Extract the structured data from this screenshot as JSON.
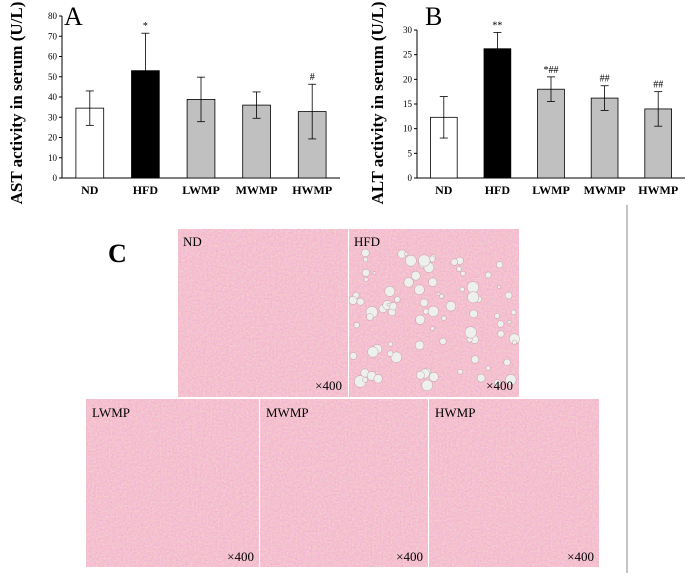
{
  "chart_data": [
    {
      "type": "bar",
      "panel_label": "A",
      "ylabel": "AST activity in serum (U/L)",
      "ylim": [
        0,
        80
      ],
      "yticks": [
        "0",
        "10",
        "20",
        "30",
        "40",
        "50",
        "60",
        "70",
        "80"
      ],
      "categories": [
        "ND",
        "HFD",
        "LWMP",
        "MWMP",
        "HWMP"
      ],
      "values": [
        34.5,
        53.0,
        38.8,
        36.0,
        32.8
      ],
      "errors": [
        8.5,
        18.5,
        11.0,
        6.5,
        13.5
      ],
      "annotations": [
        "",
        "*",
        "",
        "",
        "#"
      ],
      "colors": [
        "#ffffff",
        "#000000",
        "#c0c0c0",
        "#c0c0c0",
        "#c0c0c0"
      ]
    },
    {
      "type": "bar",
      "panel_label": "B",
      "ylabel": "ALT activity in serum (U/L)",
      "ylim": [
        0,
        30
      ],
      "yticks": [
        "0",
        "5",
        "10",
        "15",
        "20",
        "25",
        "30"
      ],
      "categories": [
        "ND",
        "HFD",
        "LWMP",
        "MWMP",
        "HWMP"
      ],
      "values": [
        12.3,
        26.2,
        18.0,
        16.2,
        14.0
      ],
      "errors": [
        4.2,
        3.3,
        2.5,
        2.5,
        3.5
      ],
      "annotations": [
        "",
        "**",
        "*##",
        "##",
        "##"
      ],
      "colors": [
        "#ffffff",
        "#000000",
        "#c0c0c0",
        "#c0c0c0",
        "#c0c0c0"
      ]
    }
  ],
  "micrographs": {
    "panel_label": "C",
    "images": [
      {
        "label": "ND",
        "magnification": "×400"
      },
      {
        "label": "HFD",
        "magnification": "×400"
      },
      {
        "label": "LWMP",
        "magnification": "×400"
      },
      {
        "label": "MWMP",
        "magnification": "×400"
      },
      {
        "label": "HWMP",
        "magnification": "×400"
      }
    ]
  }
}
